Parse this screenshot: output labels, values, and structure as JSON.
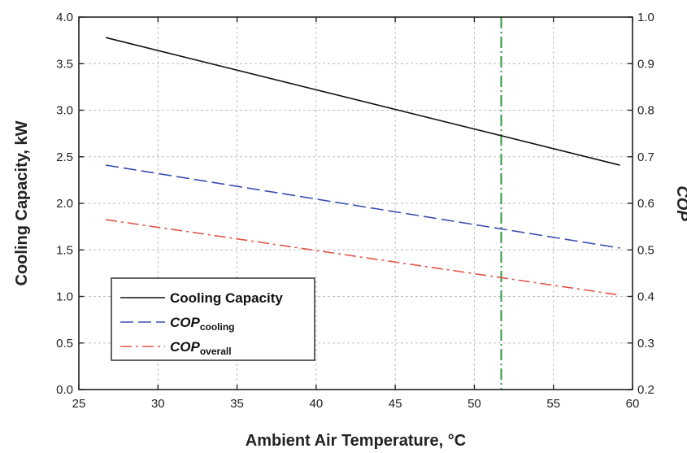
{
  "chart_data": {
    "type": "line",
    "title": "",
    "xlabel": "Ambient Air Temperature, °C",
    "ylabel": "Cooling Capacity, kW",
    "y2label": "COP",
    "xlim": [
      25,
      60
    ],
    "ylim": [
      0.0,
      4.0
    ],
    "y2lim": [
      0.2,
      1.0
    ],
    "xticks": [
      "25",
      "30",
      "35",
      "40",
      "45",
      "50",
      "55",
      "60"
    ],
    "yticks": [
      "0.0",
      "0.5",
      "1.0",
      "1.5",
      "2.0",
      "2.5",
      "3.0",
      "3.5",
      "4.0"
    ],
    "y2ticks": [
      "0.2",
      "0.3",
      "0.4",
      "0.5",
      "0.6",
      "0.7",
      "0.8",
      "0.9",
      "1.0"
    ],
    "grid": true,
    "legend_position": "bottom-left",
    "vertical_marker": {
      "x": 51.7,
      "color": "#2e9a3e"
    },
    "series": [
      {
        "name": "Cooling Capacity",
        "axis": "left",
        "x": [
          26.7,
          59.2
        ],
        "y": [
          3.78,
          2.41
        ],
        "color": "#111111",
        "dash": "none"
      },
      {
        "name": "COP",
        "subscript": "cooling",
        "axis": "right",
        "x": [
          26.7,
          59.2
        ],
        "y": [
          0.682,
          0.504
        ],
        "color": "#3a4fb0",
        "dash": "dashed"
      },
      {
        "name": "COP",
        "subscript": "overall",
        "axis": "right",
        "x": [
          26.7,
          59.2
        ],
        "y": [
          0.565,
          0.403
        ],
        "color": "#e05548",
        "dash": "dashdot"
      }
    ]
  }
}
